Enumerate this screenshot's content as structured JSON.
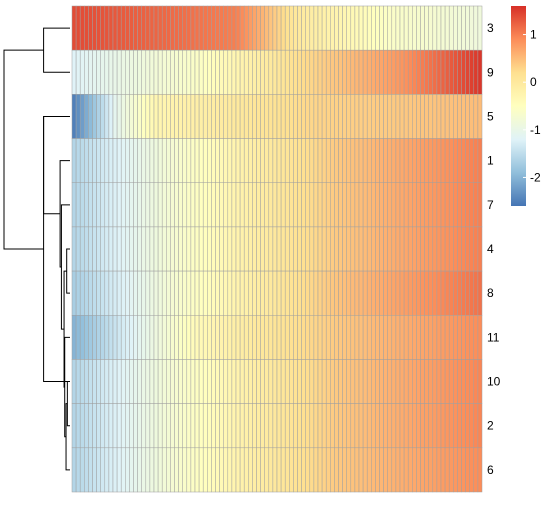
{
  "chart_data": {
    "type": "heatmap",
    "title": "",
    "xlabel": "",
    "ylabel": "",
    "n_columns": 100,
    "row_order": [
      "3",
      "9",
      "5",
      "1",
      "7",
      "4",
      "8",
      "11",
      "10",
      "2",
      "6"
    ],
    "rows": [
      {
        "label": "3",
        "profile": [
          [
            0,
            1.4
          ],
          [
            0.4,
            1.0
          ],
          [
            0.55,
            0.0
          ],
          [
            0.78,
            -0.6
          ],
          [
            1,
            -0.85
          ]
        ]
      },
      {
        "label": "9",
        "profile": [
          [
            0,
            -1.2
          ],
          [
            0.3,
            -0.6
          ],
          [
            0.55,
            0.2
          ],
          [
            0.8,
            0.8
          ],
          [
            1,
            1.55
          ]
        ]
      },
      {
        "label": "5",
        "profile": [
          [
            0,
            -2.5
          ],
          [
            0.1,
            -1.1
          ],
          [
            0.2,
            -0.3
          ],
          [
            0.4,
            0.0
          ],
          [
            0.6,
            0.3
          ],
          [
            1,
            0.5
          ]
        ]
      },
      {
        "label": "1",
        "profile": [
          [
            0,
            -1.6
          ],
          [
            0.25,
            -0.7
          ],
          [
            0.45,
            -0.1
          ],
          [
            0.65,
            0.4
          ],
          [
            1,
            1.0
          ]
        ]
      },
      {
        "label": "7",
        "profile": [
          [
            0,
            -1.6
          ],
          [
            0.25,
            -0.7
          ],
          [
            0.45,
            -0.1
          ],
          [
            0.65,
            0.4
          ],
          [
            1,
            1.0
          ]
        ]
      },
      {
        "label": "4",
        "profile": [
          [
            0,
            -1.6
          ],
          [
            0.25,
            -0.7
          ],
          [
            0.45,
            -0.1
          ],
          [
            0.65,
            0.4
          ],
          [
            1,
            1.0
          ]
        ]
      },
      {
        "label": "8",
        "profile": [
          [
            0,
            -1.7
          ],
          [
            0.25,
            -0.7
          ],
          [
            0.45,
            -0.1
          ],
          [
            0.65,
            0.45
          ],
          [
            1,
            1.1
          ]
        ]
      },
      {
        "label": "11",
        "profile": [
          [
            0,
            -2.0
          ],
          [
            0.12,
            -1.3
          ],
          [
            0.3,
            -0.4
          ],
          [
            0.45,
            0.0
          ],
          [
            0.65,
            0.4
          ],
          [
            1,
            0.9
          ]
        ]
      },
      {
        "label": "10",
        "profile": [
          [
            0,
            -1.6
          ],
          [
            0.25,
            -0.7
          ],
          [
            0.45,
            -0.1
          ],
          [
            0.65,
            0.4
          ],
          [
            1,
            0.95
          ]
        ]
      },
      {
        "label": "2",
        "profile": [
          [
            0,
            -1.6
          ],
          [
            0.25,
            -0.7
          ],
          [
            0.45,
            -0.1
          ],
          [
            0.65,
            0.4
          ],
          [
            1,
            0.95
          ]
        ]
      },
      {
        "label": "6",
        "profile": [
          [
            0,
            -1.6
          ],
          [
            0.25,
            -0.7
          ],
          [
            0.45,
            -0.1
          ],
          [
            0.65,
            0.4
          ],
          [
            1,
            0.9
          ]
        ]
      }
    ],
    "dendrogram": [
      {
        "a": "r3",
        "b": "r9",
        "height": 0.4,
        "id": "n1"
      },
      {
        "a": "r5",
        "b": "r10",
        "height": 0.4,
        "id": "n6"
      },
      {
        "a": "n1",
        "b": "n6",
        "height": 1.0,
        "id": "root"
      },
      {
        "a": "r10",
        "b": "r2",
        "height": 0.04,
        "id": "m1"
      },
      {
        "a": "m1",
        "b": "r6",
        "height": 0.06,
        "id": "m2"
      },
      {
        "a": "r11",
        "b": "m2",
        "height": 0.08,
        "id": "n5"
      },
      {
        "a": "r4",
        "b": "r8",
        "height": 0.05,
        "id": "n3"
      },
      {
        "a": "n3",
        "b": "n5",
        "height": 0.09,
        "id": "n4"
      },
      {
        "a": "r7",
        "b": "n4",
        "height": 0.13,
        "id": "n2"
      },
      {
        "a": "r1",
        "b": "n2",
        "height": 0.15,
        "id": "n7"
      },
      {
        "a": "r5",
        "b": "n7",
        "height": 0.4,
        "id": "n8"
      }
    ],
    "legend": {
      "position": "right",
      "min": -2.6,
      "max": 1.6,
      "ticks": [
        {
          "value": 1,
          "label": "1"
        },
        {
          "value": 0,
          "label": "0"
        },
        {
          "value": -1,
          "label": "-1"
        },
        {
          "value": -2,
          "label": "-2"
        }
      ]
    },
    "colors": [
      "#4575b4",
      "#91bfdb",
      "#e0f3f8",
      "#ffffbf",
      "#fee090",
      "#fc8d59",
      "#d73027"
    ],
    "cell_border_color": "#a0a0a0"
  }
}
